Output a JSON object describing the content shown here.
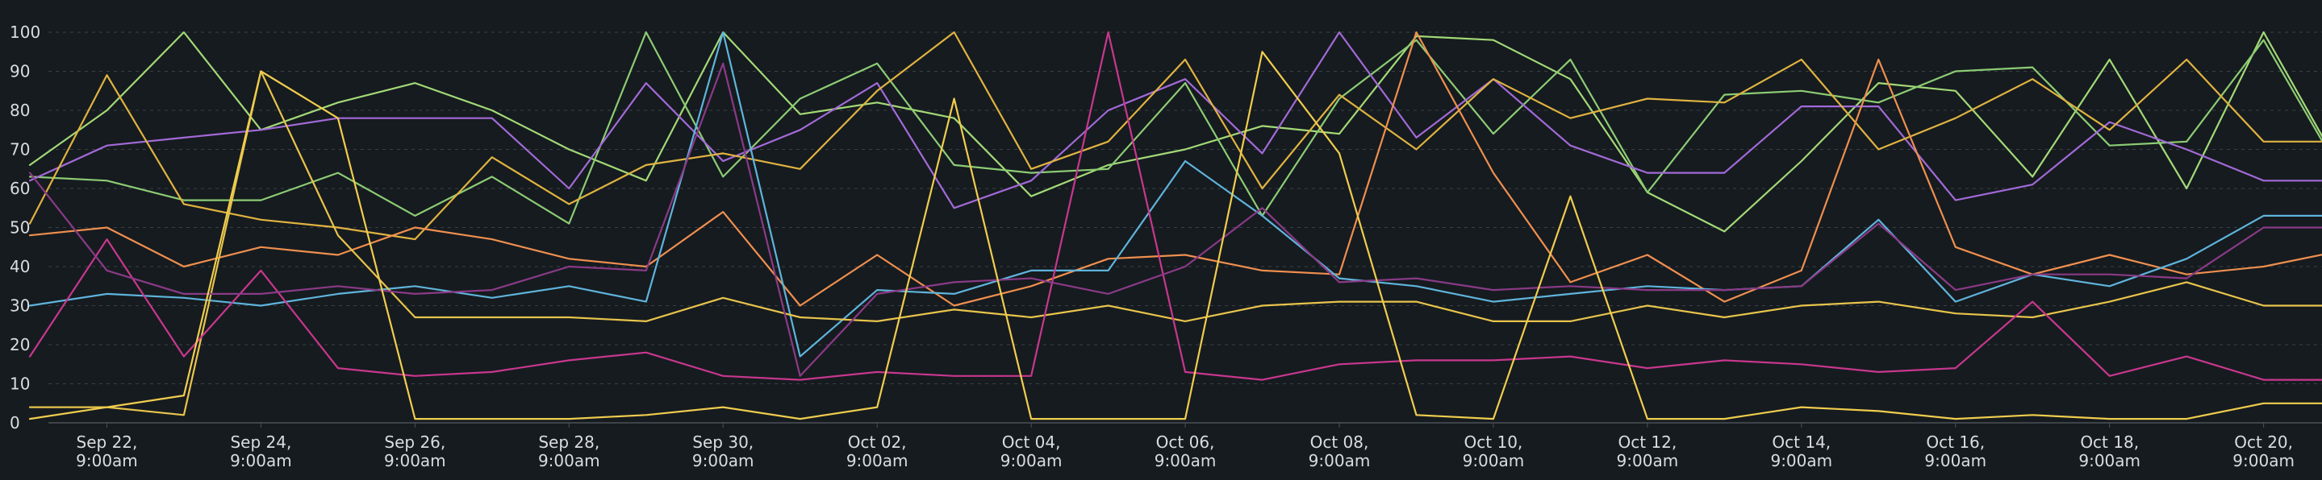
{
  "chart_data": {
    "type": "line",
    "title": "",
    "xlabel": "",
    "ylabel": "",
    "ylim": [
      0,
      100
    ],
    "grid": true,
    "legend": "none",
    "y_ticks": [
      "0",
      "10",
      "20",
      "30",
      "40",
      "50",
      "60",
      "70",
      "80",
      "90",
      "100"
    ],
    "x_ticks": [
      {
        "date": "Sep 22",
        "time": "9:00am"
      },
      {
        "date": "Sep 24",
        "time": "9:00am"
      },
      {
        "date": "Sep 26",
        "time": "9:00am"
      },
      {
        "date": "Sep 28",
        "time": "9:00am"
      },
      {
        "date": "Sep 30",
        "time": "9:00am"
      },
      {
        "date": "Oct 02",
        "time": "9:00am"
      },
      {
        "date": "Oct 04",
        "time": "9:00am"
      },
      {
        "date": "Oct 06",
        "time": "9:00am"
      },
      {
        "date": "Oct 08",
        "time": "9:00am"
      },
      {
        "date": "Oct 10",
        "time": "9:00am"
      },
      {
        "date": "Oct 12",
        "time": "9:00am"
      },
      {
        "date": "Oct 14",
        "time": "9:00am"
      },
      {
        "date": "Oct 16",
        "time": "9:00am"
      },
      {
        "date": "Oct 18",
        "time": "9:00am"
      },
      {
        "date": "Oct 20",
        "time": "9:00am"
      }
    ],
    "x": [
      "Sep 21",
      "Sep 22",
      "Sep 23",
      "Sep 24",
      "Sep 25",
      "Sep 26",
      "Sep 27",
      "Sep 28",
      "Sep 29",
      "Sep 30",
      "Oct 01",
      "Oct 02",
      "Oct 03",
      "Oct 04",
      "Oct 05",
      "Oct 06",
      "Oct 07",
      "Oct 08",
      "Oct 09",
      "Oct 10",
      "Oct 11",
      "Oct 12",
      "Oct 13",
      "Oct 14",
      "Oct 15",
      "Oct 16",
      "Oct 17",
      "Oct 18",
      "Oct 19",
      "Oct 20",
      "Oct 21"
    ],
    "series": [
      {
        "color": "#a3d977",
        "values": [
          66,
          80,
          100,
          75,
          82,
          87,
          80,
          70,
          62,
          100,
          79,
          82,
          78,
          58,
          66,
          70,
          76,
          74,
          99,
          98,
          88,
          59,
          49,
          67,
          87,
          85,
          63,
          93,
          60,
          100,
          65
        ]
      },
      {
        "color": "#8ccc74",
        "values": [
          63,
          62,
          57,
          57,
          64,
          53,
          63,
          51,
          100,
          63,
          83,
          92,
          66,
          64,
          65,
          87,
          53,
          83,
          98,
          74,
          93,
          59,
          84,
          85,
          82,
          90,
          91,
          71,
          72,
          98,
          64
        ]
      },
      {
        "color": "#a26ad8",
        "values": [
          62,
          71,
          73,
          75,
          78,
          78,
          78,
          60,
          87,
          67,
          75,
          87,
          55,
          62,
          80,
          88,
          69,
          100,
          73,
          88,
          71,
          64,
          64,
          81,
          81,
          57,
          61,
          77,
          70,
          62,
          62
        ]
      },
      {
        "color": "#e0b341",
        "values": [
          51,
          89,
          56,
          52,
          50,
          47,
          68,
          56,
          66,
          69,
          65,
          85,
          100,
          65,
          72,
          93,
          60,
          84,
          70,
          88,
          78,
          83,
          82,
          93,
          70,
          78,
          88,
          75,
          93,
          72,
          72
        ]
      },
      {
        "color": "#ef8f4f",
        "values": [
          48,
          50,
          40,
          45,
          43,
          50,
          47,
          42,
          40,
          54,
          30,
          43,
          30,
          35,
          42,
          43,
          39,
          38,
          100,
          64,
          36,
          43,
          31,
          39,
          93,
          45,
          38,
          43,
          38,
          40,
          44
        ]
      },
      {
        "color": "#5fb4dc",
        "values": [
          30,
          33,
          32,
          30,
          33,
          35,
          32,
          35,
          31,
          100,
          17,
          34,
          33,
          39,
          39,
          67,
          53,
          37,
          35,
          31,
          33,
          35,
          34,
          35,
          52,
          31,
          38,
          35,
          42,
          53,
          53
        ]
      },
      {
        "color": "#e8c44c",
        "values": [
          4,
          4,
          2,
          90,
          48,
          27,
          27,
          27,
          26,
          32,
          27,
          26,
          29,
          27,
          30,
          26,
          30,
          31,
          31,
          26,
          26,
          30,
          27,
          30,
          31,
          28,
          27,
          31,
          36,
          30,
          30
        ]
      },
      {
        "color": "#c8378e",
        "values": [
          17,
          47,
          17,
          39,
          14,
          12,
          13,
          16,
          18,
          12,
          11,
          13,
          12,
          12,
          100,
          13,
          11,
          15,
          16,
          16,
          17,
          14,
          16,
          15,
          13,
          14,
          31,
          12,
          17,
          11,
          11
        ]
      },
      {
        "color": "#8a3a87",
        "values": [
          64,
          39,
          33,
          33,
          35,
          33,
          34,
          40,
          39,
          92,
          12,
          33,
          36,
          37,
          33,
          40,
          55,
          36,
          37,
          34,
          35,
          34,
          34,
          35,
          51,
          34,
          38,
          38,
          37,
          50,
          50
        ]
      },
      {
        "color": "#f0cd4e",
        "values": [
          1,
          4,
          7,
          90,
          78,
          1,
          1,
          1,
          2,
          4,
          1,
          4,
          83,
          1,
          1,
          1,
          95,
          69,
          2,
          1,
          58,
          1,
          1,
          4,
          3,
          1,
          2,
          1,
          1,
          5,
          5
        ]
      }
    ]
  }
}
